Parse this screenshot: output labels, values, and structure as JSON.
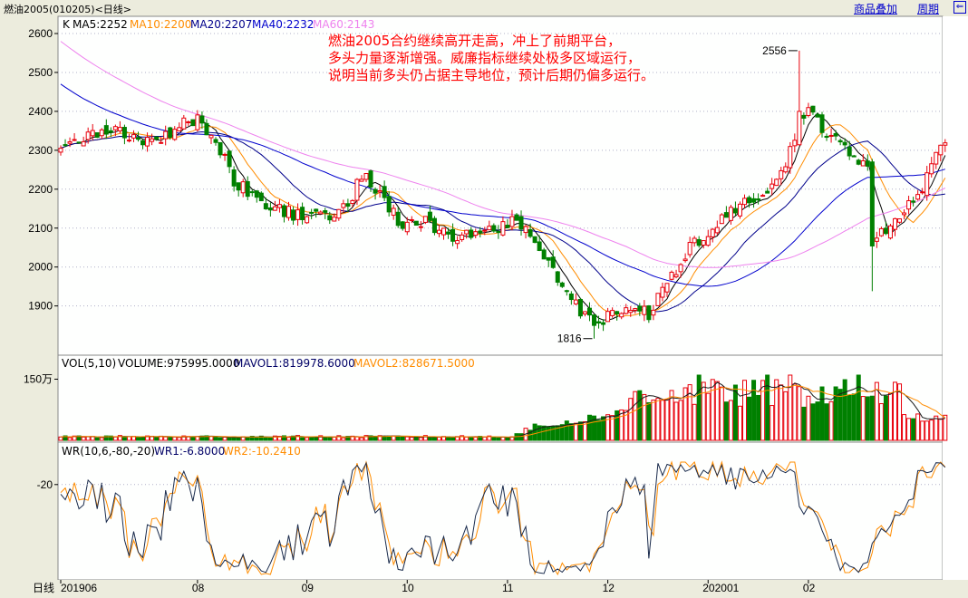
{
  "window": {
    "title": "燃油2005(010205)<日线>",
    "overlay_button": "商品叠加",
    "period_button": "周期",
    "corner_icon": "export-icon"
  },
  "colors": {
    "up": "#e8000b",
    "down": "#008000",
    "ma5": "#000000",
    "ma10": "#ff8c00",
    "ma20": "#00008b",
    "ma40": "#0000cd",
    "ma60": "#ee82ee",
    "wr1": "#1a2b4c",
    "wr2": "#ff8c00",
    "grid": "#b0b0c8"
  },
  "annotation": {
    "lines": [
      "燃油2005合约继续高开走高，冲上了前期平台，",
      "多头力量逐渐增强。威廉指标继续处极多区域运行，",
      "说明当前多头仍占据主导地位，预计后期仍偏多运行。"
    ]
  },
  "chart_data": [
    {
      "panel": "price",
      "type": "candlestick",
      "ylim": [
        1810,
        2620
      ],
      "yticks": [
        "2600",
        "2500",
        "2400",
        "2300",
        "2200",
        "2100",
        "2000",
        "1900"
      ],
      "legend": {
        "K": "K",
        "ma5": "MA5:2252",
        "ma10": "MA10:2200",
        "ma20": "MA20:2207",
        "ma40": "MA40:2232",
        "ma60": "MA60:2143"
      },
      "high_label": "2556",
      "low_label": "1816",
      "high_index": 162,
      "low_index": 117,
      "x_axis_label": "日线",
      "x_labels": [
        {
          "index": 0,
          "label": "201906"
        },
        {
          "index": 30,
          "label": "08"
        },
        {
          "index": 54,
          "label": "09"
        },
        {
          "index": 76,
          "label": "10"
        },
        {
          "index": 98,
          "label": "11"
        },
        {
          "index": 120,
          "label": "12"
        },
        {
          "index": 142,
          "label": "202001"
        },
        {
          "index": 164,
          "label": "02"
        }
      ],
      "anchors": [
        [
          0,
          2295
        ],
        [
          6,
          2330
        ],
        [
          12,
          2365
        ],
        [
          18,
          2310
        ],
        [
          25,
          2355
        ],
        [
          30,
          2385
        ],
        [
          34,
          2325
        ],
        [
          38,
          2220
        ],
        [
          43,
          2180
        ],
        [
          48,
          2145
        ],
        [
          53,
          2130
        ],
        [
          58,
          2135
        ],
        [
          63,
          2150
        ],
        [
          66,
          2240
        ],
        [
          70,
          2190
        ],
        [
          75,
          2105
        ],
        [
          80,
          2115
        ],
        [
          85,
          2080
        ],
        [
          90,
          2080
        ],
        [
          95,
          2095
        ],
        [
          100,
          2120
        ],
        [
          105,
          2040
        ],
        [
          110,
          1960
        ],
        [
          114,
          1880
        ],
        [
          117,
          1850
        ],
        [
          121,
          1880
        ],
        [
          125,
          1900
        ],
        [
          129,
          1880
        ],
        [
          133,
          1960
        ],
        [
          138,
          2050
        ],
        [
          143,
          2100
        ],
        [
          148,
          2155
        ],
        [
          153,
          2180
        ],
        [
          158,
          2240
        ],
        [
          161,
          2320
        ],
        [
          162,
          2400
        ],
        [
          165,
          2390
        ],
        [
          168,
          2340
        ],
        [
          171,
          2310
        ],
        [
          174,
          2290
        ],
        [
          177,
          2260
        ],
        [
          178,
          2050
        ],
        [
          180,
          2090
        ],
        [
          183,
          2120
        ],
        [
          186,
          2170
        ],
        [
          189,
          2210
        ],
        [
          191,
          2260
        ],
        [
          193,
          2320
        ]
      ]
    },
    {
      "panel": "volume",
      "type": "bar",
      "legend": {
        "name": "VOL(5,10)",
        "volume": "VOLUME:975995.0000",
        "mavol1": "MAVOL1:819978.6000",
        "mavol2": "MAVOL2:828671.5000"
      },
      "ytick": "150万",
      "volume_units": "万"
    },
    {
      "panel": "wr",
      "type": "line",
      "legend": {
        "name": "WR(10,6,-80,-20)",
        "wr1": "WR1:-6.8000",
        "wr2": "WR2:-10.2410"
      },
      "ytick": "-20",
      "ylim": [
        -100,
        0
      ]
    }
  ]
}
